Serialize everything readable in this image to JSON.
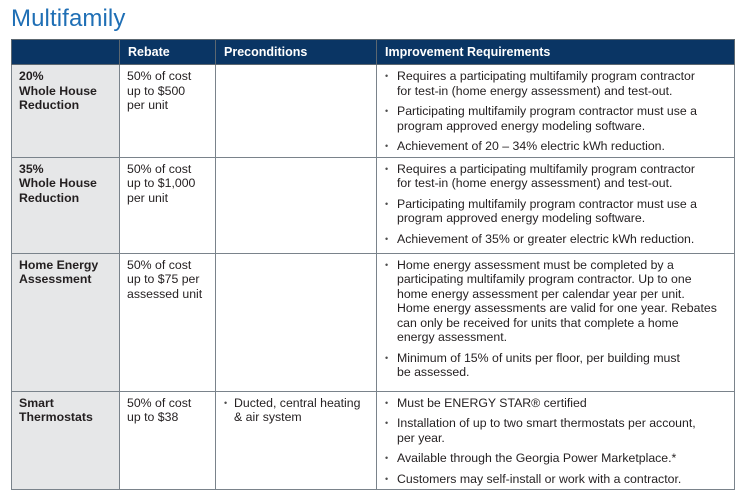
{
  "page": {
    "title": "Multifamily"
  },
  "table": {
    "headers": [
      "",
      "Rebate",
      "Preconditions",
      "Improvement Requirements"
    ],
    "rows": [
      {
        "category": "20%\nWhole House\nReduction",
        "rebate": "50% of cost\nup to $500\nper unit",
        "preconditions": [],
        "requirements": [
          "Requires a participating multifamily program contractor\nfor test-in (home energy assessment) and test-out.",
          "Participating multifamily program contractor must use a\nprogram approved energy modeling software.",
          "Achievement of 20 – 34% electric kWh reduction."
        ]
      },
      {
        "category": "35%\nWhole House\nReduction",
        "rebate": "50% of cost\nup to $1,000\nper unit",
        "preconditions": [],
        "requirements": [
          "Requires a participating multifamily program contractor\nfor test-in (home energy assessment) and test-out.",
          "Participating multifamily program contractor must use a\nprogram approved energy modeling software.",
          "Achievement of 35% or greater electric kWh reduction."
        ]
      },
      {
        "category": "Home Energy\nAssessment",
        "rebate": "50% of cost\nup to $75 per\nassessed unit",
        "preconditions": [],
        "requirements": [
          "Home energy assessment must be completed by a\nparticipating multifamily program contractor. Up to one\nhome energy assessment per calendar year per unit.\nHome energy assessments are valid for one year. Rebates\ncan only be received for units that complete a home\nenergy assessment.",
          "Minimum of 15% of units per floor, per building must\nbe assessed."
        ]
      },
      {
        "category": "Smart\nThermostats",
        "rebate": "50% of cost\nup to $38",
        "preconditions": [
          "Ducted, central heating\n& air system"
        ],
        "requirements": [
          "Must be ENERGY STAR® certified",
          "Installation of up to two smart thermostats per account,\nper year.",
          "Available through the Georgia Power Marketplace.*",
          "Customers may self-install or work with a contractor."
        ]
      }
    ]
  }
}
